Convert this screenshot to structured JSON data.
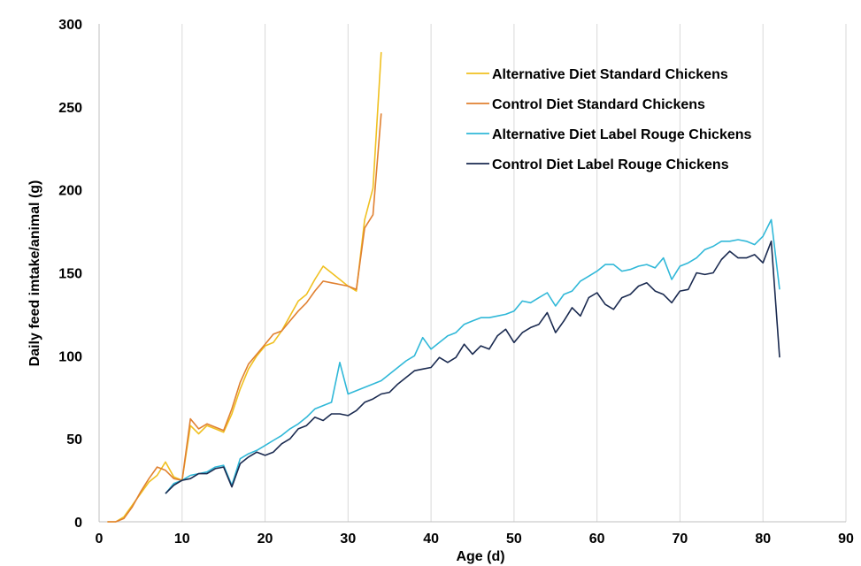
{
  "chart_data": {
    "type": "line",
    "title": "",
    "xlabel": "Age (d)",
    "ylabel": "Daily feed imtake/animal (g)",
    "xlim": [
      0,
      90
    ],
    "ylim": [
      0,
      300
    ],
    "x_ticks": [
      "0",
      "10",
      "20",
      "30",
      "40",
      "50",
      "60",
      "70",
      "80",
      "90"
    ],
    "y_ticks": [
      "0",
      "50",
      "100",
      "150",
      "200",
      "250",
      "300"
    ],
    "grid": "vertical gridlines",
    "legend_position": "top-right",
    "series": [
      {
        "name": "Alternative Diet Standard Chickens",
        "color": "#F0C020",
        "points": [
          [
            1,
            0
          ],
          [
            2,
            0
          ],
          [
            3,
            3
          ],
          [
            4,
            10
          ],
          [
            5,
            17
          ],
          [
            6,
            24
          ],
          [
            7,
            28
          ],
          [
            8,
            36
          ],
          [
            9,
            27
          ],
          [
            10,
            25
          ],
          [
            11,
            58
          ],
          [
            12,
            53
          ],
          [
            13,
            58
          ],
          [
            14,
            56
          ],
          [
            15,
            54
          ],
          [
            16,
            65
          ],
          [
            17,
            80
          ],
          [
            18,
            92
          ],
          [
            19,
            100
          ],
          [
            20,
            106
          ],
          [
            21,
            108
          ],
          [
            22,
            115
          ],
          [
            23,
            124
          ],
          [
            24,
            133
          ],
          [
            25,
            137
          ],
          [
            26,
            146
          ],
          [
            27,
            154
          ],
          [
            28,
            150
          ],
          [
            29,
            146
          ],
          [
            30,
            142
          ],
          [
            31,
            139
          ],
          [
            32,
            182
          ],
          [
            33,
            201
          ],
          [
            34,
            283
          ]
        ]
      },
      {
        "name": "Control Diet Standard Chickens",
        "color": "#E08030",
        "points": [
          [
            1,
            0
          ],
          [
            2,
            0
          ],
          [
            3,
            2
          ],
          [
            4,
            9
          ],
          [
            5,
            18
          ],
          [
            6,
            26
          ],
          [
            7,
            33
          ],
          [
            8,
            31
          ],
          [
            9,
            26
          ],
          [
            10,
            25
          ],
          [
            11,
            62
          ],
          [
            12,
            56
          ],
          [
            13,
            59
          ],
          [
            14,
            57
          ],
          [
            15,
            55
          ],
          [
            16,
            68
          ],
          [
            17,
            84
          ],
          [
            18,
            95
          ],
          [
            19,
            101
          ],
          [
            20,
            107
          ],
          [
            21,
            113
          ],
          [
            22,
            115
          ],
          [
            23,
            121
          ],
          [
            24,
            127
          ],
          [
            25,
            132
          ],
          [
            26,
            139
          ],
          [
            27,
            145
          ],
          [
            28,
            144
          ],
          [
            29,
            143
          ],
          [
            30,
            142
          ],
          [
            31,
            140
          ],
          [
            32,
            177
          ],
          [
            33,
            185
          ],
          [
            34,
            246
          ]
        ]
      },
      {
        "name": "Alternative Diet Label Rouge Chickens",
        "color": "#30B8D8",
        "points": [
          [
            8,
            17
          ],
          [
            9,
            23
          ],
          [
            10,
            25
          ],
          [
            11,
            28
          ],
          [
            12,
            29
          ],
          [
            13,
            30
          ],
          [
            14,
            33
          ],
          [
            15,
            34
          ],
          [
            16,
            22
          ],
          [
            17,
            38
          ],
          [
            18,
            41
          ],
          [
            19,
            43
          ],
          [
            20,
            46
          ],
          [
            21,
            49
          ],
          [
            22,
            52
          ],
          [
            23,
            56
          ],
          [
            24,
            59
          ],
          [
            25,
            63
          ],
          [
            26,
            68
          ],
          [
            27,
            70
          ],
          [
            28,
            72
          ],
          [
            29,
            96
          ],
          [
            30,
            77
          ],
          [
            31,
            79
          ],
          [
            32,
            81
          ],
          [
            33,
            83
          ],
          [
            34,
            85
          ],
          [
            35,
            89
          ],
          [
            36,
            93
          ],
          [
            37,
            97
          ],
          [
            38,
            100
          ],
          [
            39,
            111
          ],
          [
            40,
            104
          ],
          [
            41,
            108
          ],
          [
            42,
            112
          ],
          [
            43,
            114
          ],
          [
            44,
            119
          ],
          [
            45,
            121
          ],
          [
            46,
            123
          ],
          [
            47,
            123
          ],
          [
            48,
            124
          ],
          [
            49,
            125
          ],
          [
            50,
            127
          ],
          [
            51,
            133
          ],
          [
            52,
            132
          ],
          [
            53,
            135
          ],
          [
            54,
            138
          ],
          [
            55,
            130
          ],
          [
            56,
            137
          ],
          [
            57,
            139
          ],
          [
            58,
            145
          ],
          [
            59,
            148
          ],
          [
            60,
            151
          ],
          [
            61,
            155
          ],
          [
            62,
            155
          ],
          [
            63,
            151
          ],
          [
            64,
            152
          ],
          [
            65,
            154
          ],
          [
            66,
            155
          ],
          [
            67,
            153
          ],
          [
            68,
            159
          ],
          [
            69,
            146
          ],
          [
            70,
            154
          ],
          [
            71,
            156
          ],
          [
            72,
            159
          ],
          [
            73,
            164
          ],
          [
            74,
            166
          ],
          [
            75,
            169
          ],
          [
            76,
            169
          ],
          [
            77,
            170
          ],
          [
            78,
            169
          ],
          [
            79,
            167
          ],
          [
            80,
            172
          ],
          [
            81,
            182
          ],
          [
            82,
            140
          ]
        ]
      },
      {
        "name": "Control Diet Label Rouge Chickens",
        "color": "#1A2A50",
        "points": [
          [
            8,
            17
          ],
          [
            9,
            22
          ],
          [
            10,
            25
          ],
          [
            11,
            26
          ],
          [
            12,
            29
          ],
          [
            13,
            29
          ],
          [
            14,
            32
          ],
          [
            15,
            33
          ],
          [
            16,
            21
          ],
          [
            17,
            35
          ],
          [
            18,
            39
          ],
          [
            19,
            42
          ],
          [
            20,
            40
          ],
          [
            21,
            42
          ],
          [
            22,
            47
          ],
          [
            23,
            50
          ],
          [
            24,
            56
          ],
          [
            25,
            58
          ],
          [
            26,
            63
          ],
          [
            27,
            61
          ],
          [
            28,
            65
          ],
          [
            29,
            65
          ],
          [
            30,
            64
          ],
          [
            31,
            67
          ],
          [
            32,
            72
          ],
          [
            33,
            74
          ],
          [
            34,
            77
          ],
          [
            35,
            78
          ],
          [
            36,
            83
          ],
          [
            37,
            87
          ],
          [
            38,
            91
          ],
          [
            39,
            92
          ],
          [
            40,
            93
          ],
          [
            41,
            99
          ],
          [
            42,
            96
          ],
          [
            43,
            99
          ],
          [
            44,
            107
          ],
          [
            45,
            101
          ],
          [
            46,
            106
          ],
          [
            47,
            104
          ],
          [
            48,
            112
          ],
          [
            49,
            116
          ],
          [
            50,
            108
          ],
          [
            51,
            114
          ],
          [
            52,
            117
          ],
          [
            53,
            119
          ],
          [
            54,
            126
          ],
          [
            55,
            114
          ],
          [
            56,
            121
          ],
          [
            57,
            129
          ],
          [
            58,
            124
          ],
          [
            59,
            135
          ],
          [
            60,
            138
          ],
          [
            61,
            131
          ],
          [
            62,
            128
          ],
          [
            63,
            135
          ],
          [
            64,
            137
          ],
          [
            65,
            142
          ],
          [
            66,
            144
          ],
          [
            67,
            139
          ],
          [
            68,
            137
          ],
          [
            69,
            132
          ],
          [
            70,
            139
          ],
          [
            71,
            140
          ],
          [
            72,
            150
          ],
          [
            73,
            149
          ],
          [
            74,
            150
          ],
          [
            75,
            158
          ],
          [
            76,
            163
          ],
          [
            77,
            159
          ],
          [
            78,
            159
          ],
          [
            79,
            161
          ],
          [
            80,
            156
          ],
          [
            81,
            169
          ],
          [
            82,
            99
          ]
        ]
      }
    ]
  }
}
